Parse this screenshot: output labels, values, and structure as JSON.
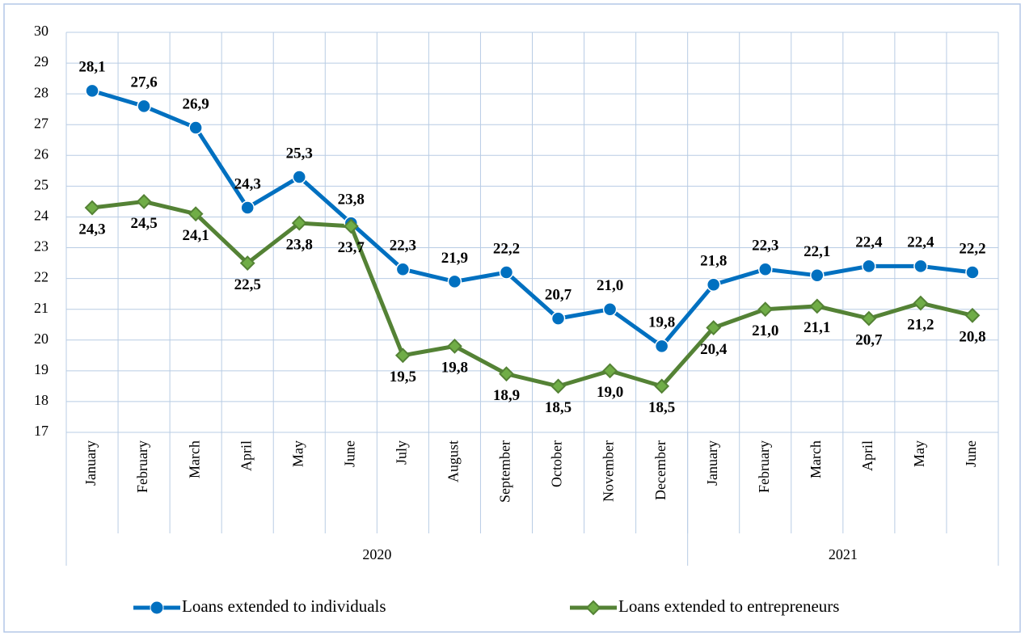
{
  "chart_data": {
    "type": "line",
    "categories": [
      "January",
      "February",
      "March",
      "April",
      "May",
      "June",
      "July",
      "August",
      "September",
      "October",
      "November",
      "December",
      "January",
      "February",
      "March",
      "April",
      "May",
      "June"
    ],
    "groups": [
      {
        "label": "2020",
        "span": 12
      },
      {
        "label": "2021",
        "span": 6
      }
    ],
    "series": [
      {
        "name": "Loans extended to individuals",
        "color": "#0070c0",
        "label_color": "#1f3864",
        "marker": "circle",
        "label_position": "above",
        "values": [
          28.1,
          27.6,
          26.9,
          24.3,
          25.3,
          23.8,
          22.3,
          21.9,
          22.2,
          20.7,
          21.0,
          19.8,
          21.8,
          22.3,
          22.1,
          22.4,
          22.4,
          22.2
        ],
        "value_labels": [
          "28,1",
          "27,6",
          "26,9",
          "24,3",
          "25,3",
          "23,8",
          "22,3",
          "21,9",
          "22,2",
          "20,7",
          "21,0",
          "19,8",
          "21,8",
          "22,3",
          "22,1",
          "22,4",
          "22,4",
          "22,2"
        ]
      },
      {
        "name": "Loans extended to entrepreneurs",
        "color": "#548235",
        "label_color": "#385723",
        "marker": "diamond",
        "label_position": "below",
        "values": [
          24.3,
          24.5,
          24.1,
          22.5,
          23.8,
          23.7,
          19.5,
          19.8,
          18.9,
          18.5,
          19.0,
          18.5,
          20.4,
          21.0,
          21.1,
          20.7,
          21.2,
          20.8
        ],
        "value_labels": [
          "24,3",
          "24,5",
          "24,1",
          "22,5",
          "23,8",
          "23,7",
          "19,5",
          "19,8",
          "18,9",
          "18,5",
          "19,0",
          "18,5",
          "20,4",
          "21,0",
          "21,1",
          "20,7",
          "21,2",
          "20,8"
        ]
      }
    ],
    "ylim": [
      17,
      30
    ],
    "yticks": [
      17,
      18,
      19,
      20,
      21,
      22,
      23,
      24,
      25,
      26,
      27,
      28,
      29,
      30
    ],
    "grid": true,
    "legend": "bottom"
  }
}
